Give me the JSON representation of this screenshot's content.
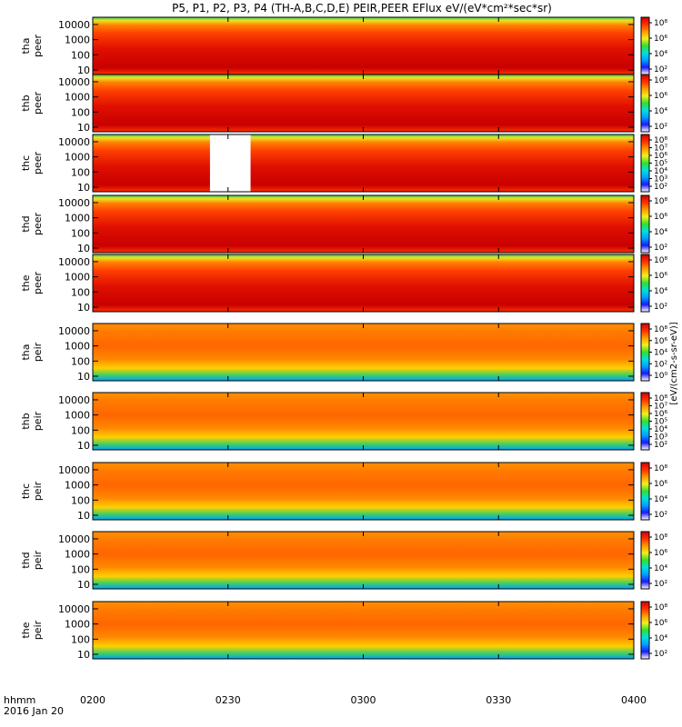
{
  "title": "P5, P1, P2, P3, P4 (TH-A,B,C,D,E) PEIR,PEER EFlux eV/(eV*cm²*sec*sr)",
  "footer": {
    "time_label": "hhmm",
    "date_label": "2016 Jan 20"
  },
  "colorbar_unit": "[eV/(cm2-s-sr-eV)]",
  "colors": {
    "colormap": [
      "#ffffff",
      "#1a1aff",
      "#00a0ff",
      "#00e0e0",
      "#30e030",
      "#f0f020",
      "#ff9900",
      "#ff3000",
      "#d00000"
    ],
    "gap": "#ffffff"
  },
  "chart_data": {
    "type": "heatmap",
    "x_ticks": [
      "0200",
      "0230",
      "0300",
      "0330",
      "0400"
    ],
    "y_ticks": [
      "10",
      "100",
      "1000",
      "10000"
    ],
    "ylim": [
      5,
      30000
    ],
    "yscale": "log",
    "panels": [
      {
        "id": "tha-peer",
        "line1": "tha",
        "line2": "peer",
        "species": "electron",
        "cbar_ticks": [
          "10²",
          "10⁴",
          "10⁶",
          "10⁸"
        ],
        "cbar_range": [
          1,
          9
        ]
      },
      {
        "id": "thb-peer",
        "line1": "thb",
        "line2": "peer",
        "species": "electron",
        "cbar_ticks": [
          "10²",
          "10⁴",
          "10⁶",
          "10⁸"
        ],
        "cbar_range": [
          1,
          9
        ]
      },
      {
        "id": "thc-peer",
        "line1": "thc",
        "line2": "peer",
        "species": "electron",
        "cbar_ticks": [
          "10²",
          "10³",
          "10⁴",
          "10⁵",
          "10⁶",
          "10⁷",
          "10⁸"
        ],
        "cbar_range": [
          1,
          9
        ],
        "data_gap_start": "0226",
        "data_gap_end": "0235"
      },
      {
        "id": "thd-peer",
        "line1": "thd",
        "line2": "peer",
        "species": "electron",
        "cbar_ticks": [
          "10²",
          "10⁴",
          "10⁶",
          "10⁸"
        ],
        "cbar_range": [
          1,
          9
        ]
      },
      {
        "id": "the-peer",
        "line1": "the",
        "line2": "peer",
        "species": "electron",
        "cbar_ticks": [
          "10²",
          "10⁴",
          "10⁶",
          "10⁸"
        ],
        "cbar_range": [
          1,
          9
        ]
      },
      {
        "id": "tha-peir",
        "line1": "tha",
        "line2": "peir",
        "species": "ion",
        "cbar_ticks": [
          "10⁰",
          "10²",
          "10⁴",
          "10⁶",
          "10⁸"
        ],
        "cbar_range": [
          0,
          9
        ]
      },
      {
        "id": "thb-peir",
        "line1": "thb",
        "line2": "peir",
        "species": "ion",
        "cbar_ticks": [
          "10²",
          "10³",
          "10⁴",
          "10⁵",
          "10⁶",
          "10⁷",
          "10⁸"
        ],
        "cbar_range": [
          1,
          9
        ]
      },
      {
        "id": "thc-peir",
        "line1": "thc",
        "line2": "peir",
        "species": "ion",
        "cbar_ticks": [
          "10²",
          "10⁴",
          "10⁶",
          "10⁸"
        ],
        "cbar_range": [
          1,
          9
        ]
      },
      {
        "id": "thd-peir",
        "line1": "thd",
        "line2": "peir",
        "species": "ion",
        "cbar_ticks": [
          "10²",
          "10⁴",
          "10⁶",
          "10⁸"
        ],
        "cbar_range": [
          1,
          9
        ]
      },
      {
        "id": "the-peir",
        "line1": "the",
        "line2": "peir",
        "species": "ion",
        "cbar_ticks": [
          "10²",
          "10⁴",
          "10⁶",
          "10⁸"
        ],
        "cbar_range": [
          1,
          9
        ]
      }
    ]
  }
}
